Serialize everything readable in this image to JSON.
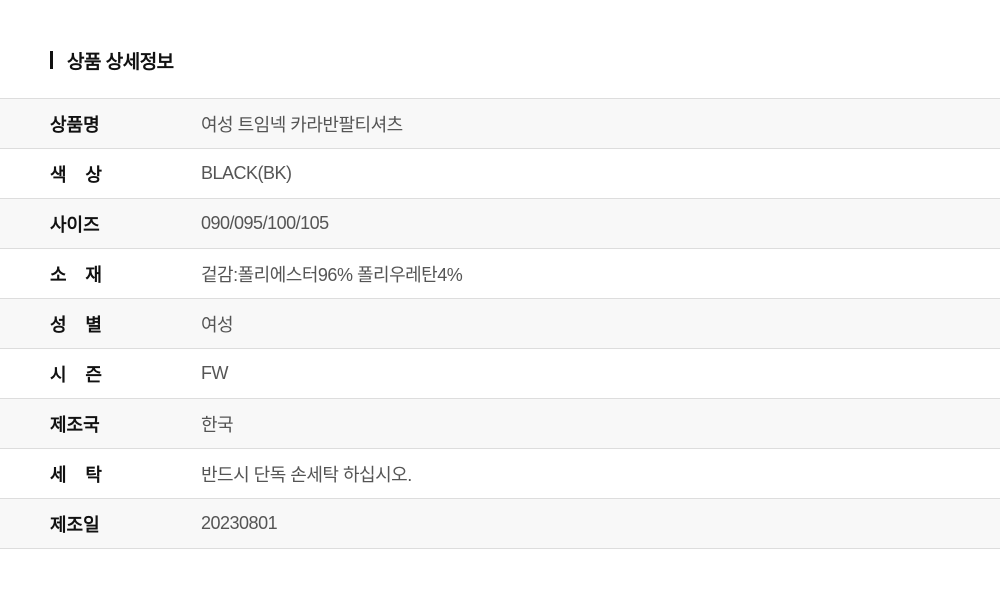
{
  "section_title": "상품 상세정보",
  "rows": [
    {
      "label": "상품명",
      "value": "여성 트임넥 카라반팔티셔츠"
    },
    {
      "label": "색 상",
      "value": "BLACK(BK)"
    },
    {
      "label": "사이즈",
      "value": "090/095/100/105"
    },
    {
      "label": "소 재",
      "value": "겉감:폴리에스터96% 폴리우레탄4%"
    },
    {
      "label": "성 별",
      "value": "여성"
    },
    {
      "label": "시 즌",
      "value": "FW"
    },
    {
      "label": "제조국",
      "value": "한국"
    },
    {
      "label": "세 탁",
      "value": "반드시 단독 손세탁 하십시오."
    },
    {
      "label": "제조일",
      "value": "20230801"
    }
  ]
}
